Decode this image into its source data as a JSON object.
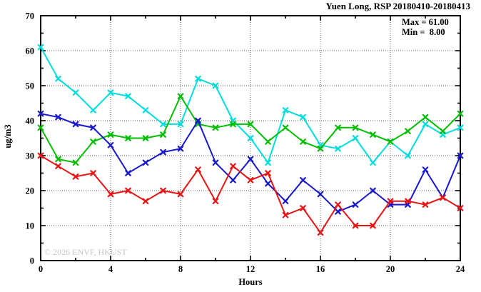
{
  "title": "Yuen Long, RSP 20180410-20180413",
  "stats": {
    "max_label": "Max = 61.00",
    "min_label": "Min =  8.00"
  },
  "watermark": "© 2026 ENVF, HKUST",
  "chart_data": {
    "type": "line",
    "title": "Yuen Long, RSP 20180410-20180413",
    "xlabel": "Hours",
    "ylabel": "ug/m3",
    "xlim": [
      0,
      24
    ],
    "ylim": [
      0,
      70
    ],
    "grid": "dotted at major ticks",
    "legend_position": "none",
    "max_value": 61.0,
    "min_value": 8.0,
    "x": [
      0,
      1,
      2,
      3,
      4,
      5,
      6,
      7,
      8,
      9,
      10,
      11,
      12,
      13,
      14,
      15,
      16,
      17,
      18,
      19,
      20,
      21,
      22,
      23,
      24
    ],
    "x_major_ticks": [
      0,
      4,
      8,
      12,
      16,
      20,
      24
    ],
    "x_minor_step": 2,
    "y_major_step": 10,
    "y_minor_step": 5,
    "axes": {
      "x_tick_labels": [
        "0",
        "4",
        "8",
        "12",
        "16",
        "20",
        "24"
      ],
      "x_tick_values": [
        0,
        4,
        8,
        12,
        16,
        20,
        24
      ],
      "y_tick_labels": [
        "0",
        "10",
        "20",
        "30",
        "40",
        "50",
        "60",
        "70"
      ],
      "y_tick_values": [
        0,
        10,
        20,
        30,
        40,
        50,
        60,
        70
      ]
    },
    "series": [
      {
        "name": "series-cyan",
        "color": "#00DDDD",
        "values": [
          61,
          52,
          48,
          43,
          48,
          47,
          43,
          39,
          39,
          52,
          50,
          40,
          35,
          28,
          43,
          41,
          33,
          32,
          35,
          28,
          34,
          30,
          39,
          36,
          38
        ]
      },
      {
        "name": "series-green",
        "color": "#00BF00",
        "values": [
          38,
          29,
          28,
          34,
          36,
          35,
          35,
          36,
          47,
          39,
          38,
          39,
          39,
          34,
          38,
          34,
          32,
          38,
          38,
          36,
          34,
          37,
          41,
          37,
          42
        ]
      },
      {
        "name": "series-blue",
        "color": "#1818CC",
        "values": [
          42,
          41,
          39,
          38,
          33,
          25,
          28,
          31,
          32,
          40,
          28,
          23,
          29,
          22,
          17,
          23,
          19,
          14,
          16,
          20,
          16,
          16,
          26,
          18,
          30
        ]
      },
      {
        "name": "series-red",
        "color": "#E81414",
        "values": [
          30,
          27,
          24,
          25,
          19,
          20,
          17,
          20,
          19,
          26,
          17,
          27,
          23,
          25,
          13,
          15,
          8,
          16,
          10,
          10,
          17,
          17,
          16,
          18,
          15
        ]
      }
    ],
    "frame_color": "#000000",
    "gridline_color": "#555555"
  }
}
